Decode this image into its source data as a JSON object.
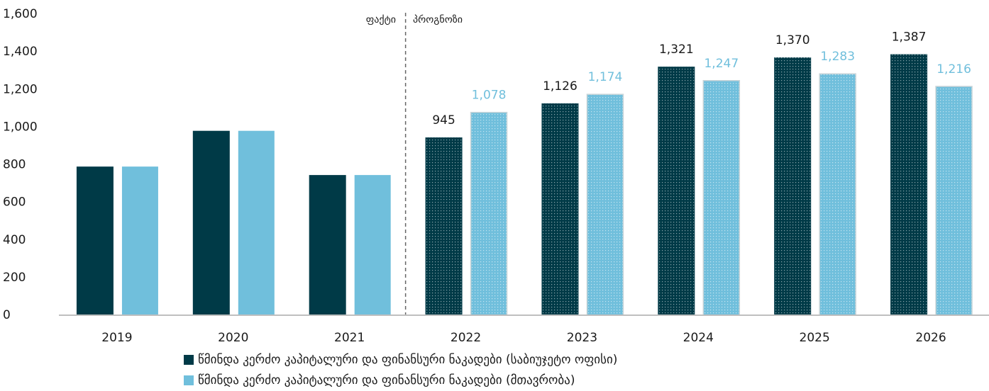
{
  "chart_data": {
    "type": "bar",
    "categories": [
      "2019",
      "2020",
      "2021",
      "2022",
      "2023",
      "2024",
      "2025",
      "2026"
    ],
    "series": [
      {
        "name": "წმინდა კერძო კაპიტალური და ფინანსური ნაკადები (საბიუჯეტო ოფისი)",
        "color": "#003a47",
        "values": [
          790,
          980,
          745,
          945,
          1126,
          1321,
          1370,
          1387
        ],
        "value_labels": [
          null,
          null,
          null,
          "945",
          "1,126",
          "1,321",
          "1,370",
          "1,387"
        ]
      },
      {
        "name": "წმინდა კერძო კაპიტალური და ფინანსური ნაკადები (მთავრობა)",
        "color": "#70bfdc",
        "values": [
          790,
          980,
          745,
          1078,
          1174,
          1247,
          1283,
          1216
        ],
        "value_labels": [
          null,
          null,
          null,
          "1,078",
          "1,174",
          "1,247",
          "1,283",
          "1,216"
        ]
      }
    ],
    "annotations": {
      "actual": "ფაქტი",
      "forecast": "პროგნოზი",
      "forecast_from": "2022"
    },
    "ylim": [
      0,
      1600
    ],
    "yticks": [
      0,
      200,
      400,
      600,
      800,
      {
        "value": 1000,
        "label": "1,000"
      },
      {
        "value": 1200,
        "label": "1,200"
      },
      {
        "value": 1400,
        "label": "1,400"
      },
      {
        "value": 1600,
        "label": "1,600"
      }
    ],
    "grid": false,
    "legend": "bottom"
  }
}
